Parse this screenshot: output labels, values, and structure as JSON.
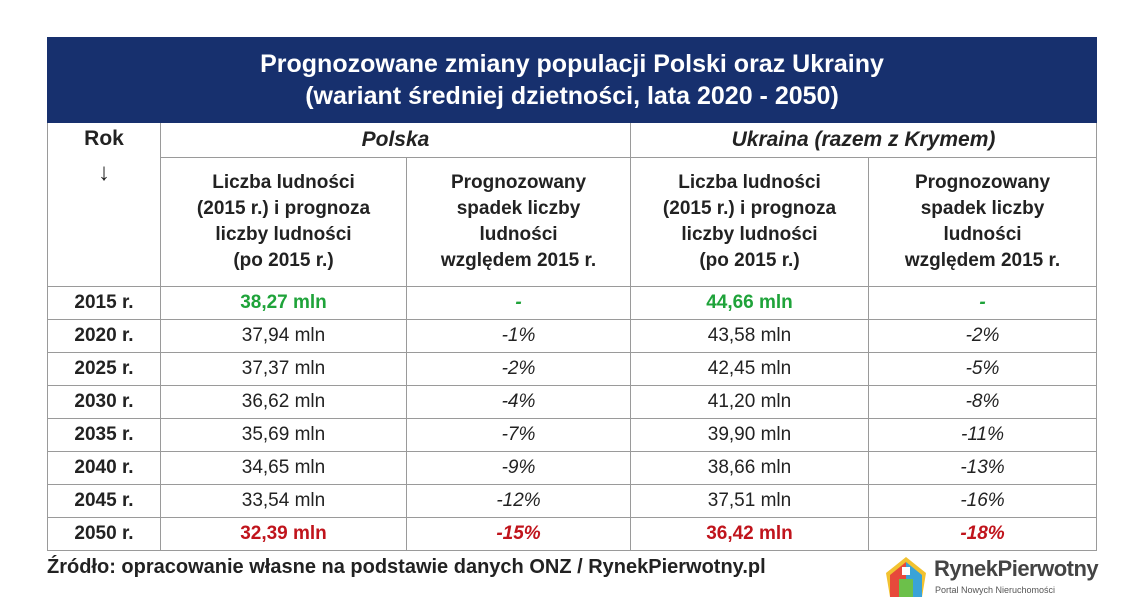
{
  "title": [
    "Prognozowane zmiany populacji Polski oraz Ukrainy",
    "(wariant średniej dzietności, lata 2020 - 2050)"
  ],
  "header": {
    "year": "Rok",
    "arrow": "↓",
    "groups": [
      "Polska",
      "Ukraina (razem z Krymem)"
    ],
    "columns": [
      [
        "Liczba ludności",
        "(2015 r.) i prognoza",
        "liczby ludności",
        "(po 2015 r.)"
      ],
      [
        "Prognozowany",
        "spadek liczby",
        "ludności",
        "względem 2015 r."
      ],
      [
        "Liczba ludności",
        "(2015 r.) i prognoza",
        "liczby ludności",
        "(po 2015 r.)"
      ],
      [
        "Prognozowany",
        "spadek liczby",
        "ludności",
        "względem 2015 r."
      ]
    ]
  },
  "rows": [
    [
      "2015 r.",
      "38,27 mln",
      "-",
      "44,66 mln",
      "-"
    ],
    [
      "2020 r.",
      "37,94 mln",
      "-1%",
      "43,58 mln",
      "-2%"
    ],
    [
      "2025 r.",
      "37,37 mln",
      "-2%",
      "42,45 mln",
      "-5%"
    ],
    [
      "2030 r.",
      "36,62 mln",
      "-4%",
      "41,20 mln",
      "-8%"
    ],
    [
      "2035 r.",
      "35,69 mln",
      "-7%",
      "39,90 mln",
      "-11%"
    ],
    [
      "2040 r.",
      "34,65 mln",
      "-9%",
      "38,66 mln",
      "-13%"
    ],
    [
      "2045 r.",
      "33,54 mln",
      "-12%",
      "37,51 mln",
      "-16%"
    ],
    [
      "2050 r.",
      "32,39 mln",
      "-15%",
      "36,42 mln",
      "-18%"
    ]
  ],
  "source": "Źródło: opracowanie własne na podstawie danych ONZ / RynekPierwotny.pl",
  "logo": {
    "name": "RynekPierwotny",
    "tagline": "Portal Nowych Nieruchomości"
  }
}
